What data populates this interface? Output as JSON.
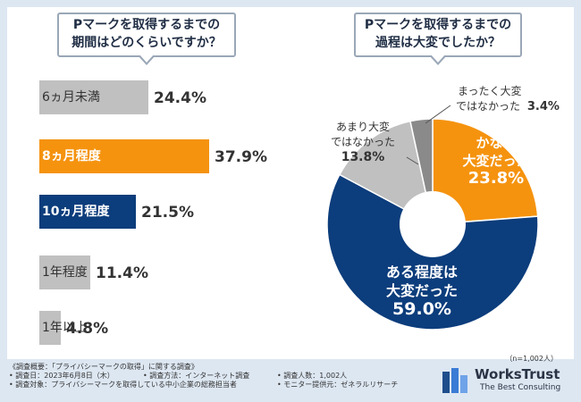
{
  "left_panel": {
    "question_line1": "Pマークを取得するまでの",
    "question_line2": "期間はどのくらいですか？"
  },
  "right_panel": {
    "question_line1": "Pマークを取得するまでの",
    "question_line2": "過程は大変でしたか？"
  },
  "chart_data": [
    {
      "type": "bar",
      "orientation": "horizontal",
      "categories": [
        "6ヵ月未満",
        "8ヵ月程度",
        "10ヵ月程度",
        "1年程度",
        "1年以上"
      ],
      "values": [
        24.4,
        37.9,
        21.5,
        11.4,
        4.8
      ],
      "value_labels": [
        "24.4%",
        "37.9%",
        "21.5%",
        "11.4%",
        "4.8%"
      ],
      "colors": [
        "#c0c0c0",
        "#f5930f",
        "#0c3d7c",
        "#c0c0c0",
        "#c0c0c0"
      ],
      "label_colors": [
        "#333333",
        "#ffffff",
        "#ffffff",
        "#333333",
        "#333333"
      ],
      "xlim": [
        0,
        40
      ]
    },
    {
      "type": "pie",
      "donut": true,
      "categories": [
        "かなり大変だった",
        "ある程度は大変だった",
        "あまり大変ではなかった",
        "まったく大変ではなかった"
      ],
      "values": [
        23.8,
        59.0,
        13.8,
        3.4
      ],
      "value_labels": [
        "23.8%",
        "59.0%",
        "13.8%",
        "3.4%"
      ],
      "colors": [
        "#f5930f",
        "#0c3d7c",
        "#c0c0c0",
        "#8a8a8a"
      ],
      "labels": {
        "kanari": {
          "line1": "かなり",
          "line2": "大変だった",
          "value": "23.8%"
        },
        "aru": {
          "line1": "ある程度は",
          "line2": "大変だった",
          "value": "59.0%"
        },
        "amari": {
          "line1": "あまり大変",
          "line2": "ではなかった",
          "value": "13.8%"
        },
        "mattaku": {
          "line1": "まったく大変",
          "line2": "ではなかった",
          "value": "3.4%"
        }
      },
      "sample_note": "（n=1,002人）"
    }
  ],
  "footer": {
    "overview": "《調査概要：「プライバシーマークの取得」に関する調査》",
    "date": "• 調査日：2023年6月8日（木）",
    "method": "• 調査方法：インターネット調査",
    "count": "• 調査人数：1,002人",
    "target": "• 調査対象：プライバシーマークを取得している中小企業の総務担当者",
    "provider": "• モニター提供元：ゼネラルリサーチ"
  },
  "logo": {
    "name": "WorksTrust",
    "tagline": "The Best Consulting"
  }
}
